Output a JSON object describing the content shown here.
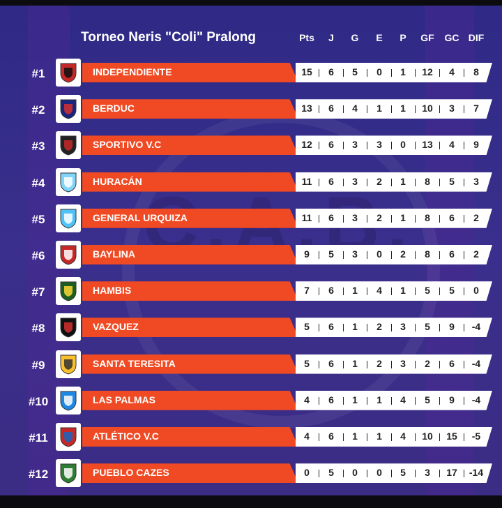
{
  "title": "Torneo Neris \"Coli\" Pralong",
  "columns": [
    "Pts",
    "J",
    "G",
    "E",
    "P",
    "GF",
    "GC",
    "DIF"
  ],
  "colors": {
    "orange": "#ef4a23",
    "background": "#2f2a86",
    "white": "#ffffff"
  },
  "rows": [
    {
      "rank": "#1",
      "team": "INDEPENDIENTE",
      "logo_icon": "independiente-crest-icon",
      "stats": [
        "15",
        "6",
        "5",
        "0",
        "1",
        "12",
        "4",
        "8"
      ]
    },
    {
      "rank": "#2",
      "team": "BERDUC",
      "logo_icon": "berduc-crest-icon",
      "stats": [
        "13",
        "6",
        "4",
        "1",
        "1",
        "10",
        "3",
        "7"
      ]
    },
    {
      "rank": "#3",
      "team": "SPORTIVO V.C",
      "logo_icon": "sportivo-crest-icon",
      "stats": [
        "12",
        "6",
        "3",
        "3",
        "0",
        "13",
        "4",
        "9"
      ]
    },
    {
      "rank": "#4",
      "team": "HURACÁN",
      "logo_icon": "huracan-crest-icon",
      "stats": [
        "11",
        "6",
        "3",
        "2",
        "1",
        "8",
        "5",
        "3"
      ]
    },
    {
      "rank": "#5",
      "team": "GENERAL URQUIZA",
      "logo_icon": "urquiza-crest-icon",
      "stats": [
        "11",
        "6",
        "3",
        "2",
        "1",
        "8",
        "6",
        "2"
      ]
    },
    {
      "rank": "#6",
      "team": "BAYLINA",
      "logo_icon": "baylina-crest-icon",
      "stats": [
        "9",
        "5",
        "3",
        "0",
        "2",
        "8",
        "6",
        "2"
      ]
    },
    {
      "rank": "#7",
      "team": "HAMBIS",
      "logo_icon": "hambis-crest-icon",
      "stats": [
        "7",
        "6",
        "1",
        "4",
        "1",
        "5",
        "5",
        "0"
      ]
    },
    {
      "rank": "#8",
      "team": "VAZQUEZ",
      "logo_icon": "vazquez-crest-icon",
      "stats": [
        "5",
        "6",
        "1",
        "2",
        "3",
        "5",
        "9",
        "-4"
      ]
    },
    {
      "rank": "#9",
      "team": "SANTA TERESITA",
      "logo_icon": "santa-teresita-crest-icon",
      "stats": [
        "5",
        "6",
        "1",
        "2",
        "3",
        "2",
        "6",
        "-4"
      ]
    },
    {
      "rank": "#10",
      "team": "LAS PALMAS",
      "logo_icon": "las-palmas-crest-icon",
      "stats": [
        "4",
        "6",
        "1",
        "1",
        "4",
        "5",
        "9",
        "-4"
      ]
    },
    {
      "rank": "#11",
      "team": "ATLÉTICO V.C",
      "logo_icon": "atletico-crest-icon",
      "stats": [
        "4",
        "6",
        "1",
        "1",
        "4",
        "10",
        "15",
        "-5"
      ]
    },
    {
      "rank": "#12",
      "team": "PUEBLO CAZES",
      "logo_icon": "pueblo-cazes-crest-icon",
      "stats": [
        "0",
        "5",
        "0",
        "0",
        "5",
        "3",
        "17",
        "-14"
      ]
    }
  ]
}
